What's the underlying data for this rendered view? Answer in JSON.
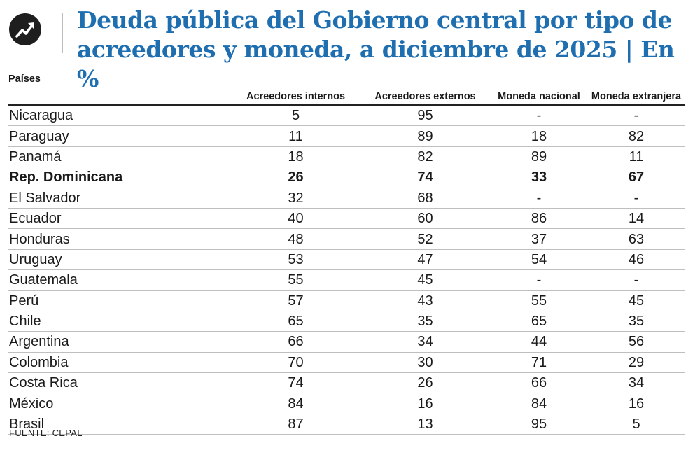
{
  "title": "Deuda pública del Gobierno central por tipo de acreedores y moneda, a diciembre de 2025 | En %",
  "source": "FUENTE: CEPAL",
  "logo_icon": "trend-arrow-icon",
  "colors": {
    "title": "#1f6fb0",
    "text": "#1a1a1a",
    "rule": "#bfbfbf"
  },
  "chart_data": {
    "type": "table",
    "columns": [
      "Países",
      "Acreedores internos",
      "Acreedores externos",
      "Moneda nacional",
      "Moneda extranjera"
    ],
    "highlight_row": "Rep. Dominicana",
    "rows": [
      {
        "pais": "Nicaragua",
        "acreedores_internos": "5",
        "acreedores_externos": "95",
        "moneda_nacional": "-",
        "moneda_extranjera": "-"
      },
      {
        "pais": "Paraguay",
        "acreedores_internos": "11",
        "acreedores_externos": "89",
        "moneda_nacional": "18",
        "moneda_extranjera": "82"
      },
      {
        "pais": "Panamá",
        "acreedores_internos": "18",
        "acreedores_externos": "82",
        "moneda_nacional": "89",
        "moneda_extranjera": "11"
      },
      {
        "pais": "Rep. Dominicana",
        "acreedores_internos": "26",
        "acreedores_externos": "74",
        "moneda_nacional": "33",
        "moneda_extranjera": "67"
      },
      {
        "pais": "El Salvador",
        "acreedores_internos": "32",
        "acreedores_externos": "68",
        "moneda_nacional": "-",
        "moneda_extranjera": "-"
      },
      {
        "pais": "Ecuador",
        "acreedores_internos": "40",
        "acreedores_externos": "60",
        "moneda_nacional": "86",
        "moneda_extranjera": "14"
      },
      {
        "pais": "Honduras",
        "acreedores_internos": "48",
        "acreedores_externos": "52",
        "moneda_nacional": "37",
        "moneda_extranjera": "63"
      },
      {
        "pais": "Uruguay",
        "acreedores_internos": "53",
        "acreedores_externos": "47",
        "moneda_nacional": "54",
        "moneda_extranjera": "46"
      },
      {
        "pais": "Guatemala",
        "acreedores_internos": "55",
        "acreedores_externos": "45",
        "moneda_nacional": "-",
        "moneda_extranjera": "-"
      },
      {
        "pais": "Perú",
        "acreedores_internos": "57",
        "acreedores_externos": "43",
        "moneda_nacional": "55",
        "moneda_extranjera": "45"
      },
      {
        "pais": "Chile",
        "acreedores_internos": "65",
        "acreedores_externos": "35",
        "moneda_nacional": "65",
        "moneda_extranjera": "35"
      },
      {
        "pais": "Argentina",
        "acreedores_internos": "66",
        "acreedores_externos": "34",
        "moneda_nacional": "44",
        "moneda_extranjera": "56"
      },
      {
        "pais": "Colombia",
        "acreedores_internos": "70",
        "acreedores_externos": "30",
        "moneda_nacional": "71",
        "moneda_extranjera": "29"
      },
      {
        "pais": "Costa Rica",
        "acreedores_internos": "74",
        "acreedores_externos": "26",
        "moneda_nacional": "66",
        "moneda_extranjera": "34"
      },
      {
        "pais": "México",
        "acreedores_internos": "84",
        "acreedores_externos": "16",
        "moneda_nacional": "84",
        "moneda_extranjera": "16"
      },
      {
        "pais": "Brasil",
        "acreedores_internos": "87",
        "acreedores_externos": "13",
        "moneda_nacional": "95",
        "moneda_extranjera": "5"
      }
    ]
  }
}
